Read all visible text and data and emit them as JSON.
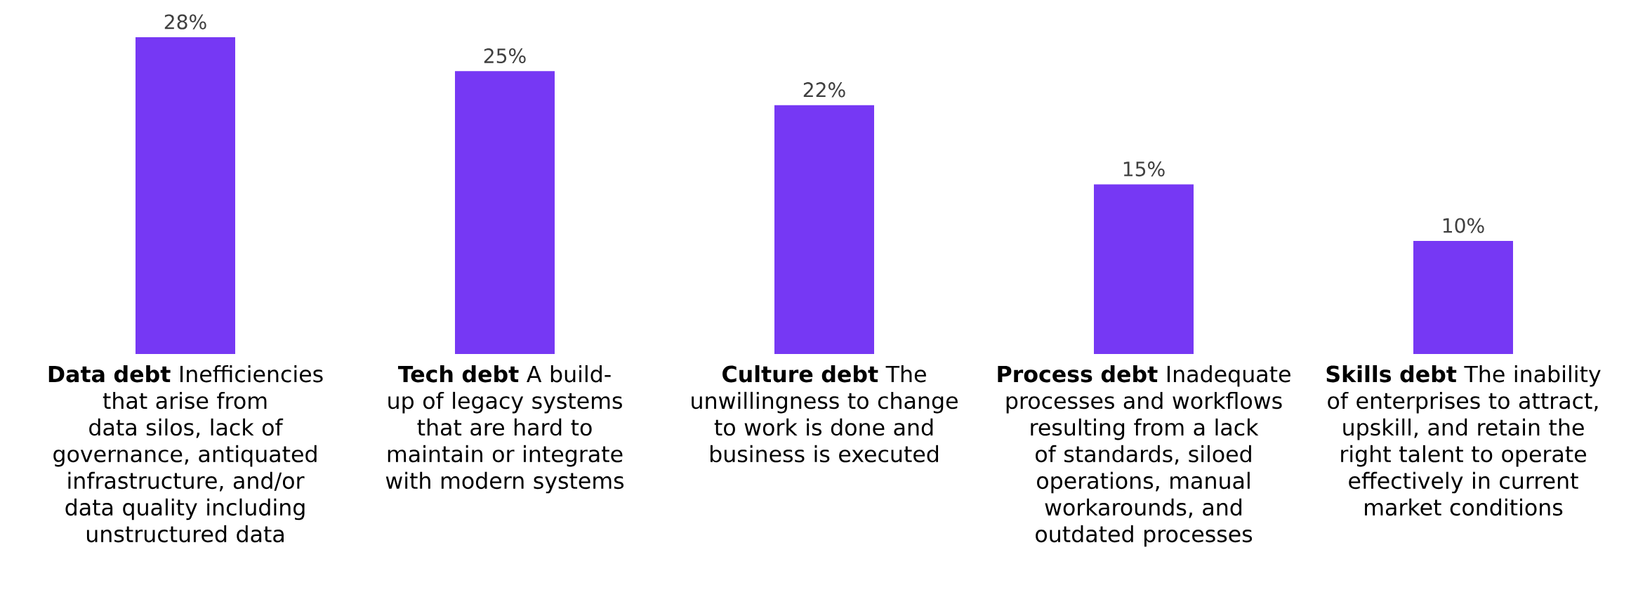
{
  "chart_data": {
    "type": "bar",
    "categories": [
      "**Data debt** Inefficiencies that arise from data silos, lack of governance, antiquated infrastructure, and/or data quality including unstructured data",
      "**Tech debt** A build-up of legacy systems that are hard to maintain or integrate with modern systems",
      "**Culture debt** The unwillingness to change to work is done and business is executed",
      "**Process debt** Inadequate processes and workflows resulting from a lack of standards, siloed operations, manual workarounds, and outdated processes",
      "**Skills debt** The inability of enterprises to attract, upskill, and retain the right talent to operate effectively in current market conditions"
    ],
    "values": [
      28,
      25,
      22,
      15,
      10
    ],
    "value_labels": [
      "28%",
      "25%",
      "22%",
      "15%",
      "10%"
    ],
    "color": "#7638f4"
  }
}
